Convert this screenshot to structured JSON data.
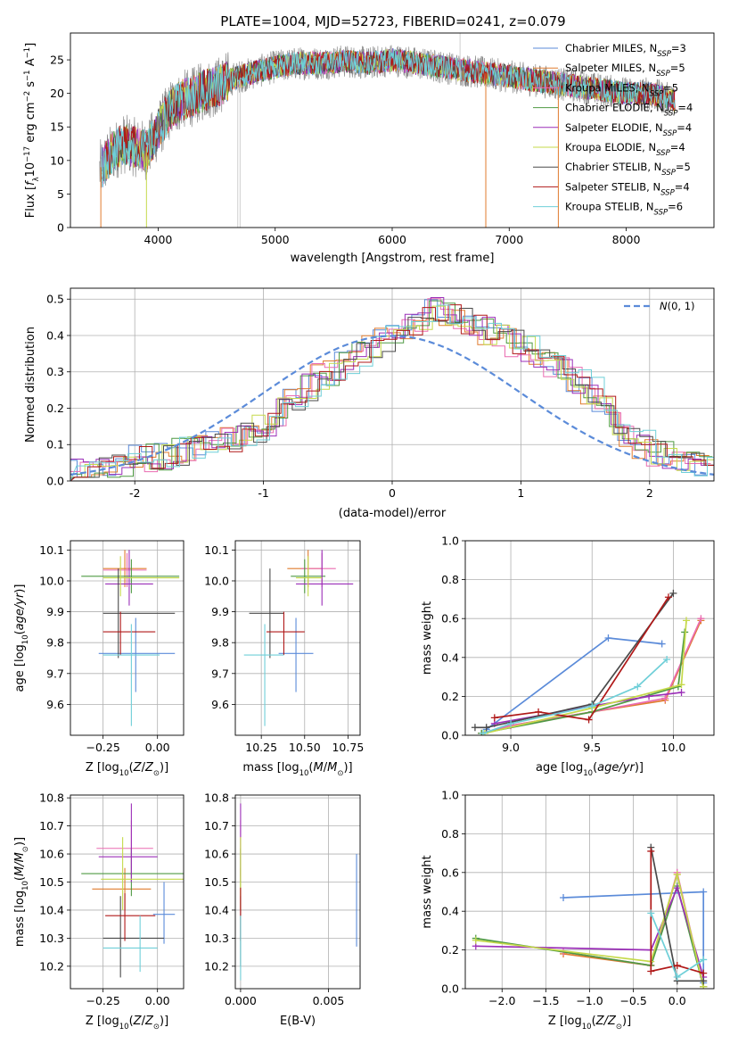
{
  "figure": {
    "title": "PLATE=1004, MJD=52723, FIBERID=0241, z=0.079"
  },
  "colors": {
    "s1": "#5b8bd9",
    "s2": "#e07b2e",
    "s3": "#ea6cb1",
    "s4": "#4f9a43",
    "s5": "#9b2fb8",
    "s6": "#c5d94a",
    "s7": "#4a4a4a",
    "s8": "#b01818",
    "s9": "#6fcfd8",
    "data": "#8a8a8a"
  },
  "chart_data": [
    {
      "id": "spectrum",
      "type": "line",
      "xlabel": "wavelength [Angstrom, rest frame]",
      "ylabel": "Flux [f_λ10^-17 erg cm^-2 s^-1 A^-1]",
      "xlim": [
        3250,
        8750
      ],
      "ylim": [
        0,
        29
      ],
      "xticks": [
        4000,
        5000,
        6000,
        7000,
        8000
      ],
      "yticks": [
        0,
        5,
        10,
        15,
        20,
        25
      ],
      "grid": false,
      "legend_position": "top-right",
      "continuum": {
        "x": [
          3500,
          3600,
          3700,
          3800,
          3900,
          4000,
          4100,
          4200,
          4300,
          4400,
          4500,
          4600,
          4700,
          4800,
          4900,
          5000,
          5200,
          5400,
          5600,
          5800,
          6000,
          6200,
          6400,
          6600,
          6800,
          7000,
          7200,
          7400,
          7600,
          7800,
          8000,
          8200,
          8400
        ],
        "y": [
          8.5,
          11.0,
          12.5,
          12.0,
          11.5,
          14.5,
          17.5,
          19.0,
          19.5,
          20.5,
          21.0,
          22.0,
          22.5,
          23.0,
          23.5,
          24.0,
          24.5,
          24.5,
          24.8,
          24.5,
          25.0,
          24.5,
          24.0,
          23.5,
          23.0,
          22.5,
          22.0,
          21.5,
          21.0,
          20.5,
          20.0,
          20.0,
          19.0
        ]
      },
      "series": [
        {
          "name": "Chabrier MILES, N_SSP=3",
          "color": "#5b8bd9"
        },
        {
          "name": "Salpeter MILES, N_SSP=5",
          "color": "#e07b2e"
        },
        {
          "name": "Kroupa MILES, N_SSP=5",
          "color": "#ea6cb1"
        },
        {
          "name": "Chabrier ELODIE, N_SSP=4",
          "color": "#4f9a43"
        },
        {
          "name": "Salpeter ELODIE, N_SSP=4",
          "color": "#9b2fb8"
        },
        {
          "name": "Kroupa ELODIE, N_SSP=4",
          "color": "#c5d94a"
        },
        {
          "name": "Chabrier STELIB, N_SSP=5",
          "color": "#4a4a4a"
        },
        {
          "name": "Salpeter STELIB, N_SSP=4",
          "color": "#b01818"
        },
        {
          "name": "Kroupa STELIB, N_SSP=6",
          "color": "#6fcfd8"
        }
      ]
    },
    {
      "id": "residuals",
      "type": "histogram",
      "xlabel": "(data-model)/error",
      "ylabel": "Normed distribution",
      "xlim": [
        -2.5,
        2.5
      ],
      "ylim": [
        0,
        0.53
      ],
      "xticks": [
        -2,
        -1,
        0,
        1,
        2
      ],
      "yticks": [
        0.0,
        0.1,
        0.2,
        0.3,
        0.4,
        0.5
      ],
      "grid": true,
      "legend_position": "top-right",
      "gaussian_label": "N(0,1)",
      "bin_width": 0.1,
      "bin_start": -2.5,
      "reference_heights": [
        0.022,
        0.025,
        0.03,
        0.04,
        0.05,
        0.06,
        0.065,
        0.07,
        0.08,
        0.09,
        0.1,
        0.11,
        0.12,
        0.13,
        0.145,
        0.16,
        0.19,
        0.22,
        0.26,
        0.29,
        0.3,
        0.32,
        0.35,
        0.37,
        0.39,
        0.41,
        0.43,
        0.45,
        0.47,
        0.46,
        0.44,
        0.42,
        0.41,
        0.4,
        0.38,
        0.36,
        0.34,
        0.32,
        0.3,
        0.28,
        0.25,
        0.2,
        0.15,
        0.12,
        0.1,
        0.08,
        0.07,
        0.06,
        0.05,
        0.035
      ]
    },
    {
      "id": "age_vs_Z",
      "type": "errorbar",
      "xlabel": "Z [log10(Z/Z⊙)]",
      "ylabel": "age  [log10(age/yr)]",
      "xlim": [
        -0.4,
        0.12
      ],
      "ylim": [
        9.5,
        10.13
      ],
      "xticks": [
        -0.25,
        0.0
      ],
      "xticklabels": [
        "−0.25",
        "0.00"
      ],
      "yticks": [
        9.6,
        9.7,
        9.8,
        9.9,
        10.0,
        10.1
      ],
      "grid": true,
      "points": [
        {
          "x": -0.1,
          "xlo": -0.27,
          "xhi": 0.08,
          "y": 9.765,
          "ylo": 9.64,
          "yhi": 9.88,
          "series": 0
        },
        {
          "x": -0.15,
          "xlo": -0.25,
          "xhi": -0.05,
          "y": 10.04,
          "ylo": 9.98,
          "yhi": 10.1,
          "series": 1
        },
        {
          "x": -0.14,
          "xlo": -0.25,
          "xhi": -0.05,
          "y": 10.035,
          "ylo": 9.98,
          "yhi": 10.09,
          "series": 2
        },
        {
          "x": -0.12,
          "xlo": -0.35,
          "xhi": 0.1,
          "y": 10.015,
          "ylo": 9.96,
          "yhi": 10.07,
          "series": 3
        },
        {
          "x": -0.13,
          "xlo": -0.24,
          "xhi": -0.02,
          "y": 9.99,
          "ylo": 9.92,
          "yhi": 10.1,
          "series": 4
        },
        {
          "x": -0.17,
          "xlo": -0.25,
          "xhi": 0.1,
          "y": 10.01,
          "ylo": 9.95,
          "yhi": 10.08,
          "series": 5
        },
        {
          "x": -0.18,
          "xlo": -0.25,
          "xhi": 0.08,
          "y": 9.895,
          "ylo": 9.75,
          "yhi": 10.04,
          "series": 6
        },
        {
          "x": -0.17,
          "xlo": -0.25,
          "xhi": -0.01,
          "y": 9.835,
          "ylo": 9.76,
          "yhi": 9.9,
          "series": 7
        },
        {
          "x": -0.12,
          "xlo": -0.25,
          "xhi": 0.01,
          "y": 9.76,
          "ylo": 9.53,
          "yhi": 9.86,
          "series": 8
        }
      ]
    },
    {
      "id": "age_vs_mass",
      "type": "errorbar",
      "xlabel": "mass [log10(M/M⊙)]",
      "ylabel": "",
      "xlim": [
        10.1,
        10.82
      ],
      "ylim": [
        9.5,
        10.13
      ],
      "xticks": [
        10.25,
        10.5,
        10.75
      ],
      "xticklabels": [
        "10.25",
        "10.50",
        "10.75"
      ],
      "yticks": [
        9.6,
        9.7,
        9.8,
        9.9,
        10.0,
        10.1
      ],
      "grid": true,
      "points": [
        {
          "x": 10.45,
          "xlo": 10.35,
          "xhi": 10.55,
          "y": 9.765,
          "ylo": 9.64,
          "yhi": 9.88,
          "series": 0
        },
        {
          "x": 10.52,
          "xlo": 10.4,
          "xhi": 10.6,
          "y": 10.04,
          "ylo": 9.98,
          "yhi": 10.1,
          "series": 1
        },
        {
          "x": 10.6,
          "xlo": 10.48,
          "xhi": 10.68,
          "y": 10.04,
          "ylo": 9.98,
          "yhi": 10.09,
          "series": 2
        },
        {
          "x": 10.5,
          "xlo": 10.42,
          "xhi": 10.62,
          "y": 10.015,
          "ylo": 9.96,
          "yhi": 10.07,
          "series": 3
        },
        {
          "x": 10.6,
          "xlo": 10.45,
          "xhi": 10.78,
          "y": 9.99,
          "ylo": 9.92,
          "yhi": 10.1,
          "series": 4
        },
        {
          "x": 10.52,
          "xlo": 10.45,
          "xhi": 10.6,
          "y": 10.01,
          "ylo": 9.95,
          "yhi": 10.08,
          "series": 5
        },
        {
          "x": 10.3,
          "xlo": 10.18,
          "xhi": 10.38,
          "y": 9.895,
          "ylo": 9.75,
          "yhi": 10.04,
          "series": 6
        },
        {
          "x": 10.38,
          "xlo": 10.28,
          "xhi": 10.5,
          "y": 9.835,
          "ylo": 9.76,
          "yhi": 9.9,
          "series": 7
        },
        {
          "x": 10.27,
          "xlo": 10.15,
          "xhi": 10.38,
          "y": 9.76,
          "ylo": 9.53,
          "yhi": 9.86,
          "series": 8
        }
      ]
    },
    {
      "id": "weight_vs_age",
      "type": "line",
      "xlabel": "age  [log10(age/yr)]",
      "ylabel": "mass weight",
      "xlim": [
        8.72,
        10.25
      ],
      "ylim": [
        0,
        1.0
      ],
      "xticks": [
        9.0,
        9.5,
        10.0
      ],
      "xticklabels": [
        "9.0",
        "9.5",
        "10.0"
      ],
      "yticks": [
        0.0,
        0.2,
        0.4,
        0.6,
        0.8,
        1.0
      ],
      "grid": true,
      "series": [
        {
          "series": 0,
          "x": [
            8.85,
            9.6,
            9.93
          ],
          "y": [
            0.03,
            0.5,
            0.47
          ]
        },
        {
          "series": 1,
          "x": [
            8.82,
            9.0,
            9.5,
            9.95,
            10.17
          ],
          "y": [
            0.01,
            0.05,
            0.12,
            0.18,
            0.59
          ]
        },
        {
          "series": 2,
          "x": [
            8.82,
            9.0,
            9.5,
            9.95,
            10.17
          ],
          "y": [
            0.01,
            0.05,
            0.12,
            0.19,
            0.6
          ]
        },
        {
          "series": 3,
          "x": [
            8.82,
            9.5,
            10.03,
            10.07
          ],
          "y": [
            0.01,
            0.12,
            0.25,
            0.53
          ]
        },
        {
          "series": 4,
          "x": [
            8.9,
            9.5,
            9.85,
            10.05
          ],
          "y": [
            0.06,
            0.15,
            0.2,
            0.22
          ]
        },
        {
          "series": 5,
          "x": [
            8.84,
            9.5,
            10.05,
            10.08
          ],
          "y": [
            0.01,
            0.14,
            0.26,
            0.59
          ]
        },
        {
          "series": 6,
          "x": [
            8.78,
            8.85,
            9.5,
            10.0
          ],
          "y": [
            0.04,
            0.04,
            0.16,
            0.73
          ]
        },
        {
          "series": 7,
          "x": [
            8.9,
            9.17,
            9.48,
            9.97
          ],
          "y": [
            0.09,
            0.12,
            0.08,
            0.71
          ]
        },
        {
          "series": 8,
          "x": [
            8.83,
            9.0,
            9.5,
            9.78,
            9.96
          ],
          "y": [
            0.01,
            0.06,
            0.15,
            0.25,
            0.39
          ]
        }
      ]
    },
    {
      "id": "mass_vs_Z",
      "type": "errorbar",
      "xlabel": "Z [log10(Z/Z⊙)]",
      "ylabel": "mass [log10(M/M⊙)]",
      "xlim": [
        -0.4,
        0.12
      ],
      "ylim": [
        10.12,
        10.81
      ],
      "xticks": [
        -0.25,
        0.0
      ],
      "xticklabels": [
        "−0.25",
        "0.00"
      ],
      "yticks": [
        10.2,
        10.3,
        10.4,
        10.5,
        10.6,
        10.7,
        10.8
      ],
      "grid": true,
      "points": [
        {
          "x": 0.03,
          "xlo": -0.02,
          "xhi": 0.08,
          "y": 10.385,
          "ylo": 10.28,
          "yhi": 10.5,
          "series": 0
        },
        {
          "x": -0.15,
          "xlo": -0.3,
          "xhi": -0.03,
          "y": 10.475,
          "ylo": 10.4,
          "yhi": 10.55,
          "series": 1
        },
        {
          "x": -0.12,
          "xlo": -0.28,
          "xhi": -0.02,
          "y": 10.62,
          "ylo": 10.52,
          "yhi": 10.72,
          "series": 2
        },
        {
          "x": -0.12,
          "xlo": -0.35,
          "xhi": 0.12,
          "y": 10.53,
          "ylo": 10.45,
          "yhi": 10.62,
          "series": 3
        },
        {
          "x": -0.12,
          "xlo": -0.27,
          "xhi": 0.0,
          "y": 10.59,
          "ylo": 10.5,
          "yhi": 10.78,
          "series": 4
        },
        {
          "x": -0.16,
          "xlo": -0.26,
          "xhi": 0.12,
          "y": 10.51,
          "ylo": 10.4,
          "yhi": 10.66,
          "series": 5
        },
        {
          "x": -0.17,
          "xlo": -0.25,
          "xhi": 0.03,
          "y": 10.3,
          "ylo": 10.16,
          "yhi": 10.45,
          "series": 6
        },
        {
          "x": -0.15,
          "xlo": -0.24,
          "xhi": -0.01,
          "y": 10.38,
          "ylo": 10.29,
          "yhi": 10.46,
          "series": 7
        },
        {
          "x": -0.08,
          "xlo": -0.25,
          "xhi": 0.0,
          "y": 10.265,
          "ylo": 10.18,
          "yhi": 10.38,
          "series": 8
        }
      ]
    },
    {
      "id": "mass_vs_ebv",
      "type": "errorbar",
      "xlabel": "E(B-V)",
      "ylabel": "",
      "xlim": [
        -0.0003,
        0.0068
      ],
      "ylim": [
        10.12,
        10.81
      ],
      "xticks": [
        0.0,
        0.005
      ],
      "xticklabels": [
        "0.000",
        "0.005"
      ],
      "yticks": [
        10.2,
        10.3,
        10.4,
        10.5,
        10.6,
        10.7,
        10.8
      ],
      "grid": true,
      "points": [
        {
          "x": 0.0066,
          "xlo": 0.0066,
          "xhi": 0.0066,
          "y": 10.385,
          "ylo": 10.27,
          "yhi": 10.6,
          "series": 0
        },
        {
          "x": 0.0,
          "xlo": 0.0,
          "xhi": 0.0,
          "y": 10.475,
          "ylo": 10.4,
          "yhi": 10.55,
          "series": 1
        },
        {
          "x": 0.0,
          "xlo": 0.0,
          "xhi": 0.0,
          "y": 10.62,
          "ylo": 10.52,
          "yhi": 10.72,
          "series": 2
        },
        {
          "x": 0.0,
          "xlo": 0.0,
          "xhi": 0.0,
          "y": 10.53,
          "ylo": 10.45,
          "yhi": 10.62,
          "series": 3
        },
        {
          "x": 0.0,
          "xlo": 0.0,
          "xhi": 0.0,
          "y": 10.59,
          "ylo": 10.5,
          "yhi": 10.78,
          "series": 4
        },
        {
          "x": 0.0,
          "xlo": 0.0,
          "xhi": 0.0,
          "y": 10.51,
          "ylo": 10.4,
          "yhi": 10.66,
          "series": 5
        },
        {
          "x": 0.0,
          "xlo": 0.0,
          "xhi": 0.0,
          "y": 10.3,
          "ylo": 10.2,
          "yhi": 10.45,
          "series": 6
        },
        {
          "x": 0.0,
          "xlo": 0.0,
          "xhi": 0.0,
          "y": 10.38,
          "ylo": 10.29,
          "yhi": 10.48,
          "series": 7
        },
        {
          "x": 0.0,
          "xlo": 0.0,
          "xhi": 0.0,
          "y": 10.265,
          "ylo": 10.15,
          "yhi": 10.38,
          "series": 8
        }
      ]
    },
    {
      "id": "weight_vs_Z",
      "type": "line",
      "xlabel": "Z [log10(Z/Z⊙)]",
      "ylabel": "mass weight",
      "xlim": [
        -2.42,
        0.42
      ],
      "ylim": [
        0,
        1.0
      ],
      "xticks": [
        -2.0,
        -1.5,
        -1.0,
        -0.5,
        0.0
      ],
      "xticklabels": [
        "−2.0",
        "−1.5",
        "−1.0",
        "−0.5",
        "0.0"
      ],
      "yticks": [
        0.0,
        0.2,
        0.4,
        0.6,
        0.8,
        1.0
      ],
      "grid": true,
      "series": [
        {
          "series": 0,
          "x": [
            -1.3,
            0.3,
            0.3
          ],
          "y": [
            0.47,
            0.5,
            0.03
          ]
        },
        {
          "series": 1,
          "x": [
            -1.3,
            -0.3,
            0.0,
            0.3
          ],
          "y": [
            0.18,
            0.12,
            0.59,
            0.01
          ]
        },
        {
          "series": 2,
          "x": [
            -1.3,
            -0.3,
            0.0,
            0.3
          ],
          "y": [
            0.19,
            0.12,
            0.6,
            0.01
          ]
        },
        {
          "series": 3,
          "x": [
            -2.3,
            -0.3,
            0.0,
            0.3
          ],
          "y": [
            0.26,
            0.12,
            0.53,
            0.01
          ]
        },
        {
          "series": 4,
          "x": [
            -2.3,
            -0.3,
            0.0,
            0.3
          ],
          "y": [
            0.22,
            0.2,
            0.52,
            0.06
          ]
        },
        {
          "series": 5,
          "x": [
            -2.3,
            -0.3,
            0.0,
            0.3
          ],
          "y": [
            0.25,
            0.14,
            0.59,
            0.01
          ]
        },
        {
          "series": 6,
          "x": [
            -0.3,
            0.0,
            0.3
          ],
          "y": [
            0.73,
            0.04,
            0.04
          ]
        },
        {
          "series": 7,
          "x": [
            -0.3,
            -0.3,
            0.0,
            0.3
          ],
          "y": [
            0.71,
            0.09,
            0.12,
            0.08
          ]
        },
        {
          "series": 8,
          "x": [
            -0.3,
            0.0,
            0.3
          ],
          "y": [
            0.39,
            0.06,
            0.15
          ]
        }
      ]
    }
  ]
}
